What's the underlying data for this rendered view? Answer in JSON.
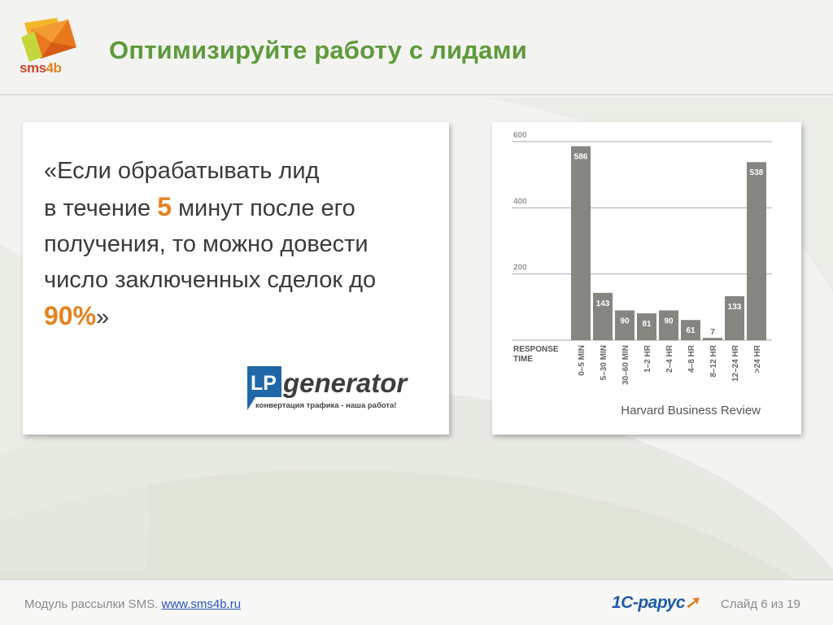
{
  "slide": {
    "title": "Оптимизируйте работу с лидами",
    "logo_text_a": "sms",
    "logo_text_b": "4b"
  },
  "quote": {
    "part1": "«Если обрабатывать лид",
    "part2": "в течение ",
    "highlight1": "5",
    "part3": " минут после его получения, то можно довести число заключенных сделок до ",
    "highlight2": "90%",
    "part4": "»"
  },
  "lp_logo": {
    "mark": "LP",
    "name": "generator",
    "tagline": "конвертация трафика - наша работа!"
  },
  "chart_data": {
    "type": "bar",
    "categories": [
      "0–5 MIN",
      "5–30 MIN",
      "30–60 MIN",
      "1–2 HR",
      "2–4 HR",
      "4–8 HR",
      "8–12 HR",
      "12–24 HR",
      ">24 HR"
    ],
    "values": [
      586,
      143,
      90,
      81,
      90,
      61,
      7,
      133,
      538
    ],
    "xlabel": "RESPONSE TIME",
    "ylabel": "",
    "ylim": [
      0,
      600
    ],
    "yticks": [
      200,
      400,
      600
    ],
    "bar_color": "#868680",
    "gridlines": true
  },
  "source": "Harvard Business Review",
  "footer": {
    "module_text": "Модуль рассылки SMS.",
    "link": "www.sms4b.ru",
    "partner_a": "1С-",
    "partner_b": "рарус",
    "slide_counter": "Слайд 6 из 19"
  },
  "colors": {
    "title": "#5e9a3a",
    "highlight": "#e5821f",
    "bars": "#868680"
  }
}
